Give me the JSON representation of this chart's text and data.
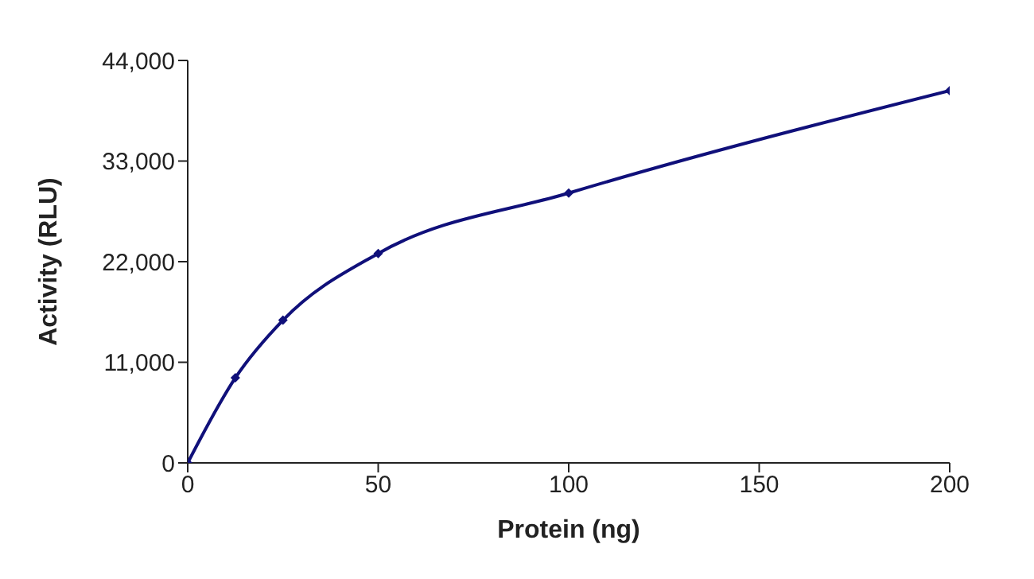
{
  "chart_data": {
    "type": "line",
    "xlabel": "Protein (ng)",
    "ylabel": "Activity (RLU)",
    "x": [
      0,
      12.5,
      25,
      50,
      100,
      200
    ],
    "series": [
      {
        "color": "#10107a",
        "values": [
          0,
          9300,
          15600,
          22900,
          29500,
          40700
        ]
      }
    ],
    "xlim": [
      0,
      200
    ],
    "xticks": [
      0,
      50,
      100,
      150,
      200
    ],
    "ylim": [
      0,
      44000
    ],
    "yticks": [
      {
        "value": 0,
        "label": "0"
      },
      {
        "value": 11000,
        "label": "11,000"
      },
      {
        "value": 22000,
        "label": "22,000"
      },
      {
        "value": 33000,
        "label": "33,000"
      },
      {
        "value": 44000,
        "label": "44,000"
      }
    ],
    "grid": false,
    "legend": false,
    "marker": "diamond",
    "line_style": "solid"
  }
}
